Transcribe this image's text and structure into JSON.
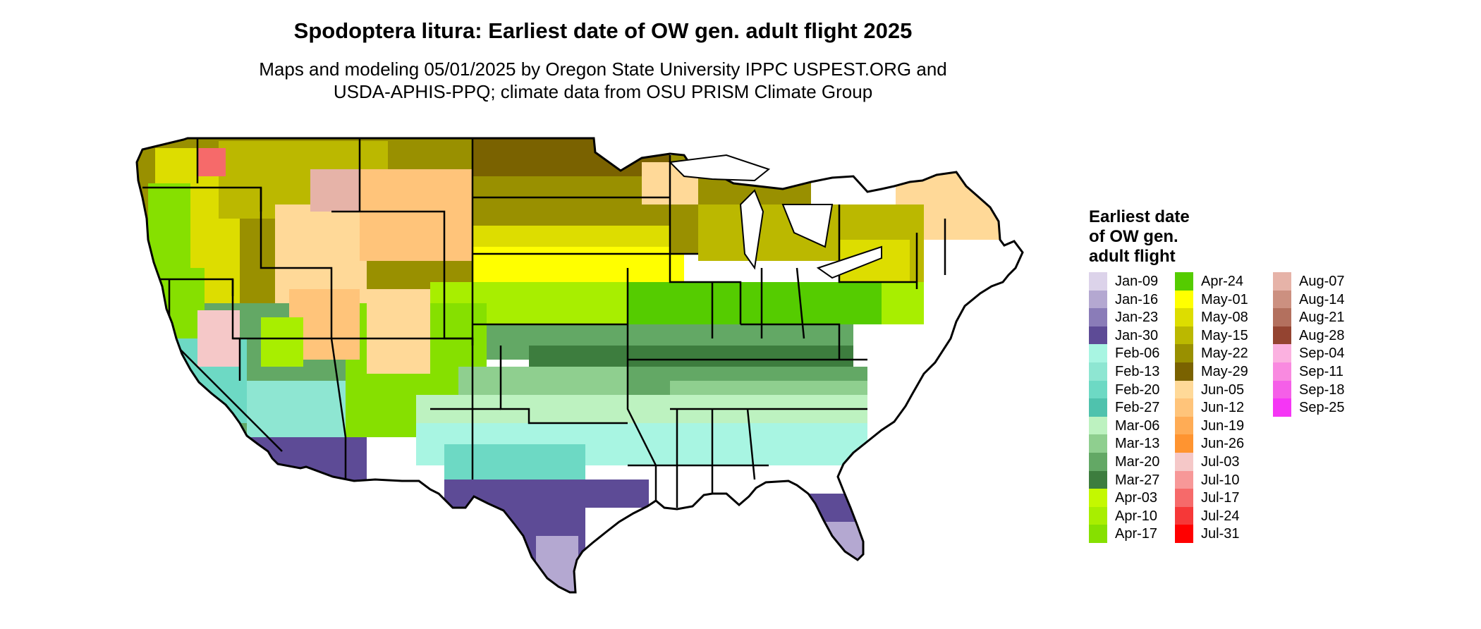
{
  "title": "Spodoptera litura: Earliest date of OW gen. adult flight 2025",
  "subtitle_line1": "Maps and modeling 05/01/2025 by Oregon State University IPPC USPEST.ORG and",
  "subtitle_line2": "USDA-APHIS-PPQ; climate data from OSU PRISM Climate Group",
  "legend_title_line1": "Earliest date",
  "legend_title_line2": "of OW gen.",
  "legend_title_line3": "adult flight",
  "legend": [
    [
      {
        "label": "Jan-09",
        "color": "#dcd3ea"
      },
      {
        "label": "Jan-16",
        "color": "#b4a8d1"
      },
      {
        "label": "Jan-23",
        "color": "#8a7cb8"
      },
      {
        "label": "Jan-30",
        "color": "#5d4b96"
      },
      {
        "label": "Feb-06",
        "color": "#a8f5e2"
      },
      {
        "label": "Feb-13",
        "color": "#8ee6d2"
      },
      {
        "label": "Feb-20",
        "color": "#6dd9c4"
      },
      {
        "label": "Feb-27",
        "color": "#4fc2ad"
      },
      {
        "label": "Mar-06",
        "color": "#bdf2c0"
      },
      {
        "label": "Mar-13",
        "color": "#8fcf8f"
      },
      {
        "label": "Mar-20",
        "color": "#63a865"
      },
      {
        "label": "Mar-27",
        "color": "#3d7d3e"
      },
      {
        "label": "Apr-03",
        "color": "#c4f800"
      },
      {
        "label": "Apr-10",
        "color": "#a8ee00"
      },
      {
        "label": "Apr-17",
        "color": "#86e000"
      }
    ],
    [
      {
        "label": "Apr-24",
        "color": "#55cc00"
      },
      {
        "label": "May-01",
        "color": "#ffff00"
      },
      {
        "label": "May-08",
        "color": "#dddd00"
      },
      {
        "label": "May-15",
        "color": "#bbb800"
      },
      {
        "label": "May-22",
        "color": "#999000"
      },
      {
        "label": "May-29",
        "color": "#7a6200"
      },
      {
        "label": "Jun-05",
        "color": "#ffd998"
      },
      {
        "label": "Jun-12",
        "color": "#ffc47a"
      },
      {
        "label": "Jun-19",
        "color": "#ffac55"
      },
      {
        "label": "Jun-26",
        "color": "#ff9430"
      },
      {
        "label": "Jul-03",
        "color": "#f5c8c8"
      },
      {
        "label": "Jul-10",
        "color": "#f79898"
      },
      {
        "label": "Jul-17",
        "color": "#f66a6a"
      },
      {
        "label": "Jul-24",
        "color": "#f63838"
      },
      {
        "label": "Jul-31",
        "color": "#ff0000"
      }
    ],
    [
      {
        "label": "Aug-07",
        "color": "#e6b3a8"
      },
      {
        "label": "Aug-14",
        "color": "#cc9080"
      },
      {
        "label": "Aug-21",
        "color": "#b3705e"
      },
      {
        "label": "Aug-28",
        "color": "#944431"
      },
      {
        "label": "Sep-04",
        "color": "#fbb1e0"
      },
      {
        "label": "Sep-11",
        "color": "#f98ae0"
      },
      {
        "label": "Sep-18",
        "color": "#f55fe8"
      },
      {
        "label": "Sep-25",
        "color": "#f536f5"
      }
    ]
  ]
}
